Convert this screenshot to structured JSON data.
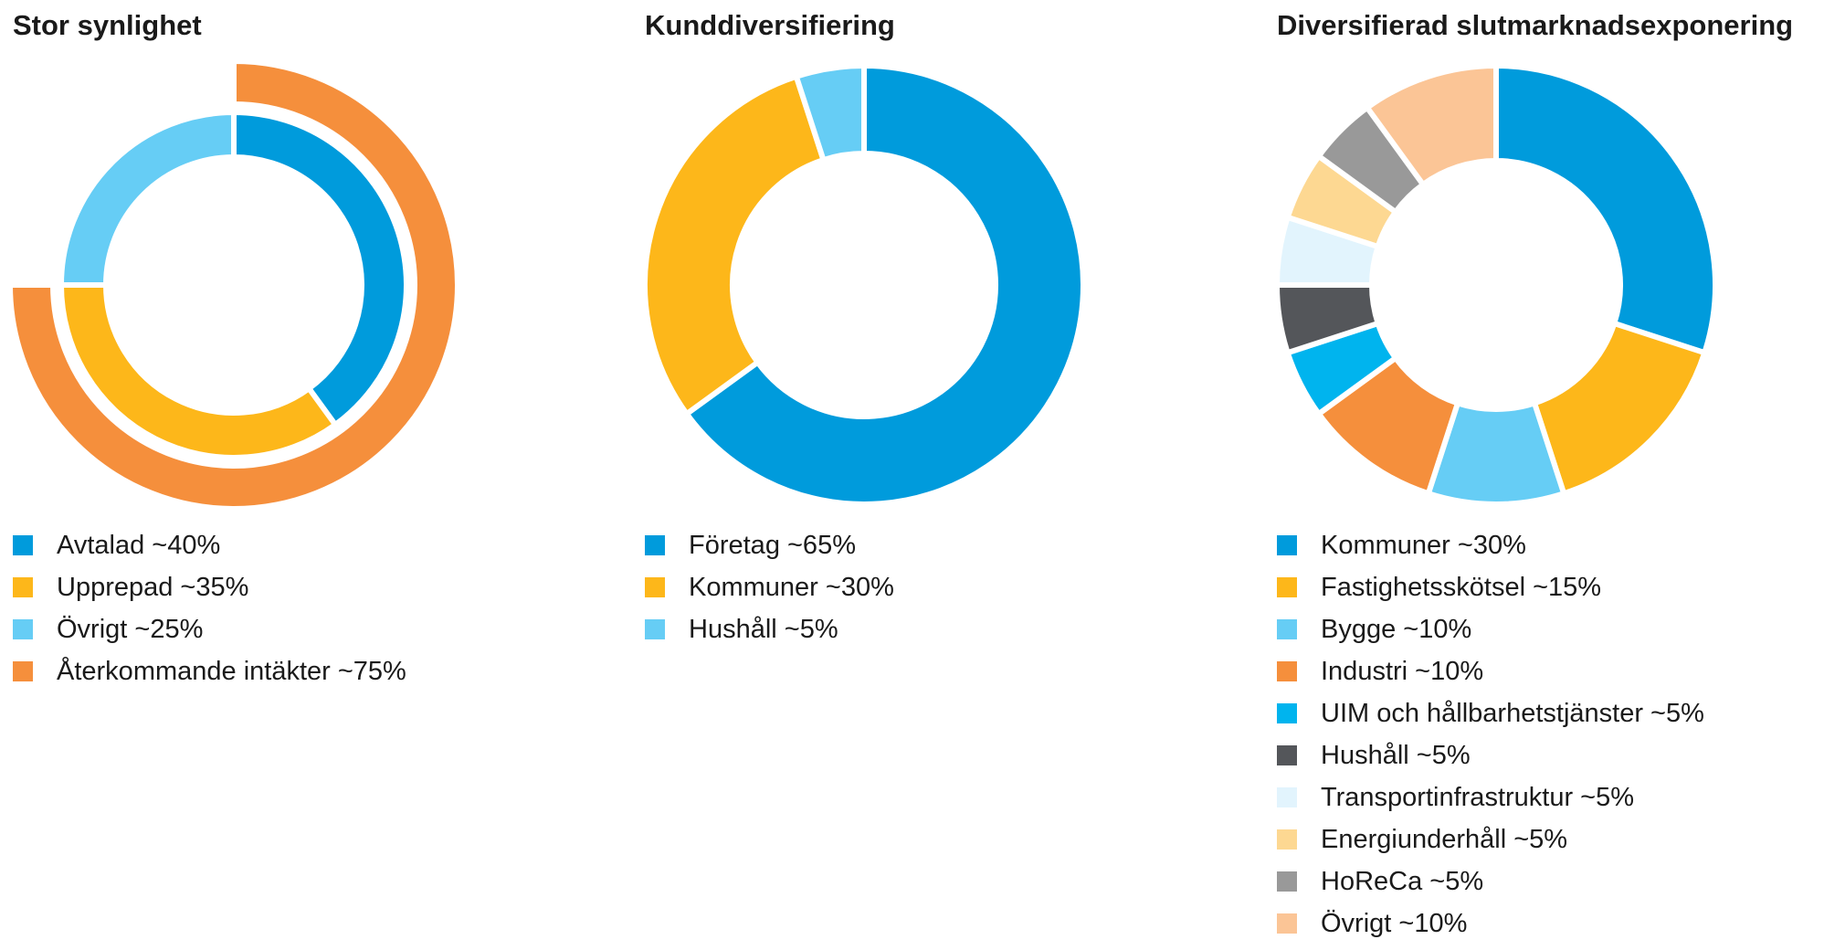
{
  "colors": {
    "blue": "#009bdc",
    "yellow": "#fdb71a",
    "light_blue": "#66cdf5",
    "orange": "#f58f3c",
    "cyan": "#00b4ee",
    "dark_gray": "#54565a",
    "pale_blue": "#e2f4fd",
    "pale_yellow": "#fdd892",
    "gray": "#999999",
    "peach": "#fbc596"
  },
  "chart_data": [
    {
      "type": "pie",
      "variant": "nested-donut",
      "title": "Stor synlighet",
      "series": [
        {
          "name": "",
          "ring": "inner",
          "slices": [
            {
              "label": "Avtalad ~40%",
              "value": 40,
              "color": "#009bdc"
            },
            {
              "label": "Upprepad ~35%",
              "value": 35,
              "color": "#fdb71a"
            },
            {
              "label": "Övrigt ~25%",
              "value": 25,
              "color": "#66cdf5"
            }
          ]
        },
        {
          "name": "",
          "ring": "outer",
          "slices": [
            {
              "label": "Återkommande intäkter ~75%",
              "value": 75,
              "color": "#f58f3c"
            }
          ]
        }
      ],
      "legend": [
        {
          "label": "Avtalad ~40%",
          "color": "#009bdc"
        },
        {
          "label": "Upprepad ~35%",
          "color": "#fdb71a"
        },
        {
          "label": "Övrigt ~25%",
          "color": "#66cdf5"
        },
        {
          "label": "Återkommande intäkter ~75%",
          "color": "#f58f3c"
        }
      ],
      "legend_position": "bottom"
    },
    {
      "type": "pie",
      "variant": "donut",
      "title": "Kunddiversifiering",
      "slices": [
        {
          "label": "Företag ~65%",
          "value": 65,
          "color": "#009bdc"
        },
        {
          "label": "Kommuner ~30%",
          "value": 30,
          "color": "#fdb71a"
        },
        {
          "label": "Hushåll ~5%",
          "value": 5,
          "color": "#66cdf5"
        }
      ],
      "legend_position": "bottom"
    },
    {
      "type": "pie",
      "variant": "donut",
      "title": "Diversifierad slutmarknadsexponering",
      "slices": [
        {
          "label": "Kommuner ~30%",
          "value": 30,
          "color": "#009bdc"
        },
        {
          "label": "Fastighetsskötsel ~15%",
          "value": 15,
          "color": "#fdb71a"
        },
        {
          "label": "Bygge ~10%",
          "value": 10,
          "color": "#66cdf5"
        },
        {
          "label": "Industri ~10%",
          "value": 10,
          "color": "#f58f3c"
        },
        {
          "label": "UIM och hållbarhetstjänster ~5%",
          "value": 5,
          "color": "#00b4ee"
        },
        {
          "label": "Hushåll ~5%",
          "value": 5,
          "color": "#54565a"
        },
        {
          "label": "Transportinfrastruktur ~5%",
          "value": 5,
          "color": "#e2f4fd"
        },
        {
          "label": "Energiunderhåll ~5%",
          "value": 5,
          "color": "#fdd892"
        },
        {
          "label": "HoReCa ~5%",
          "value": 5,
          "color": "#999999"
        },
        {
          "label": "Övrigt ~10%",
          "value": 10,
          "color": "#fbc596"
        }
      ],
      "legend_position": "bottom"
    }
  ]
}
